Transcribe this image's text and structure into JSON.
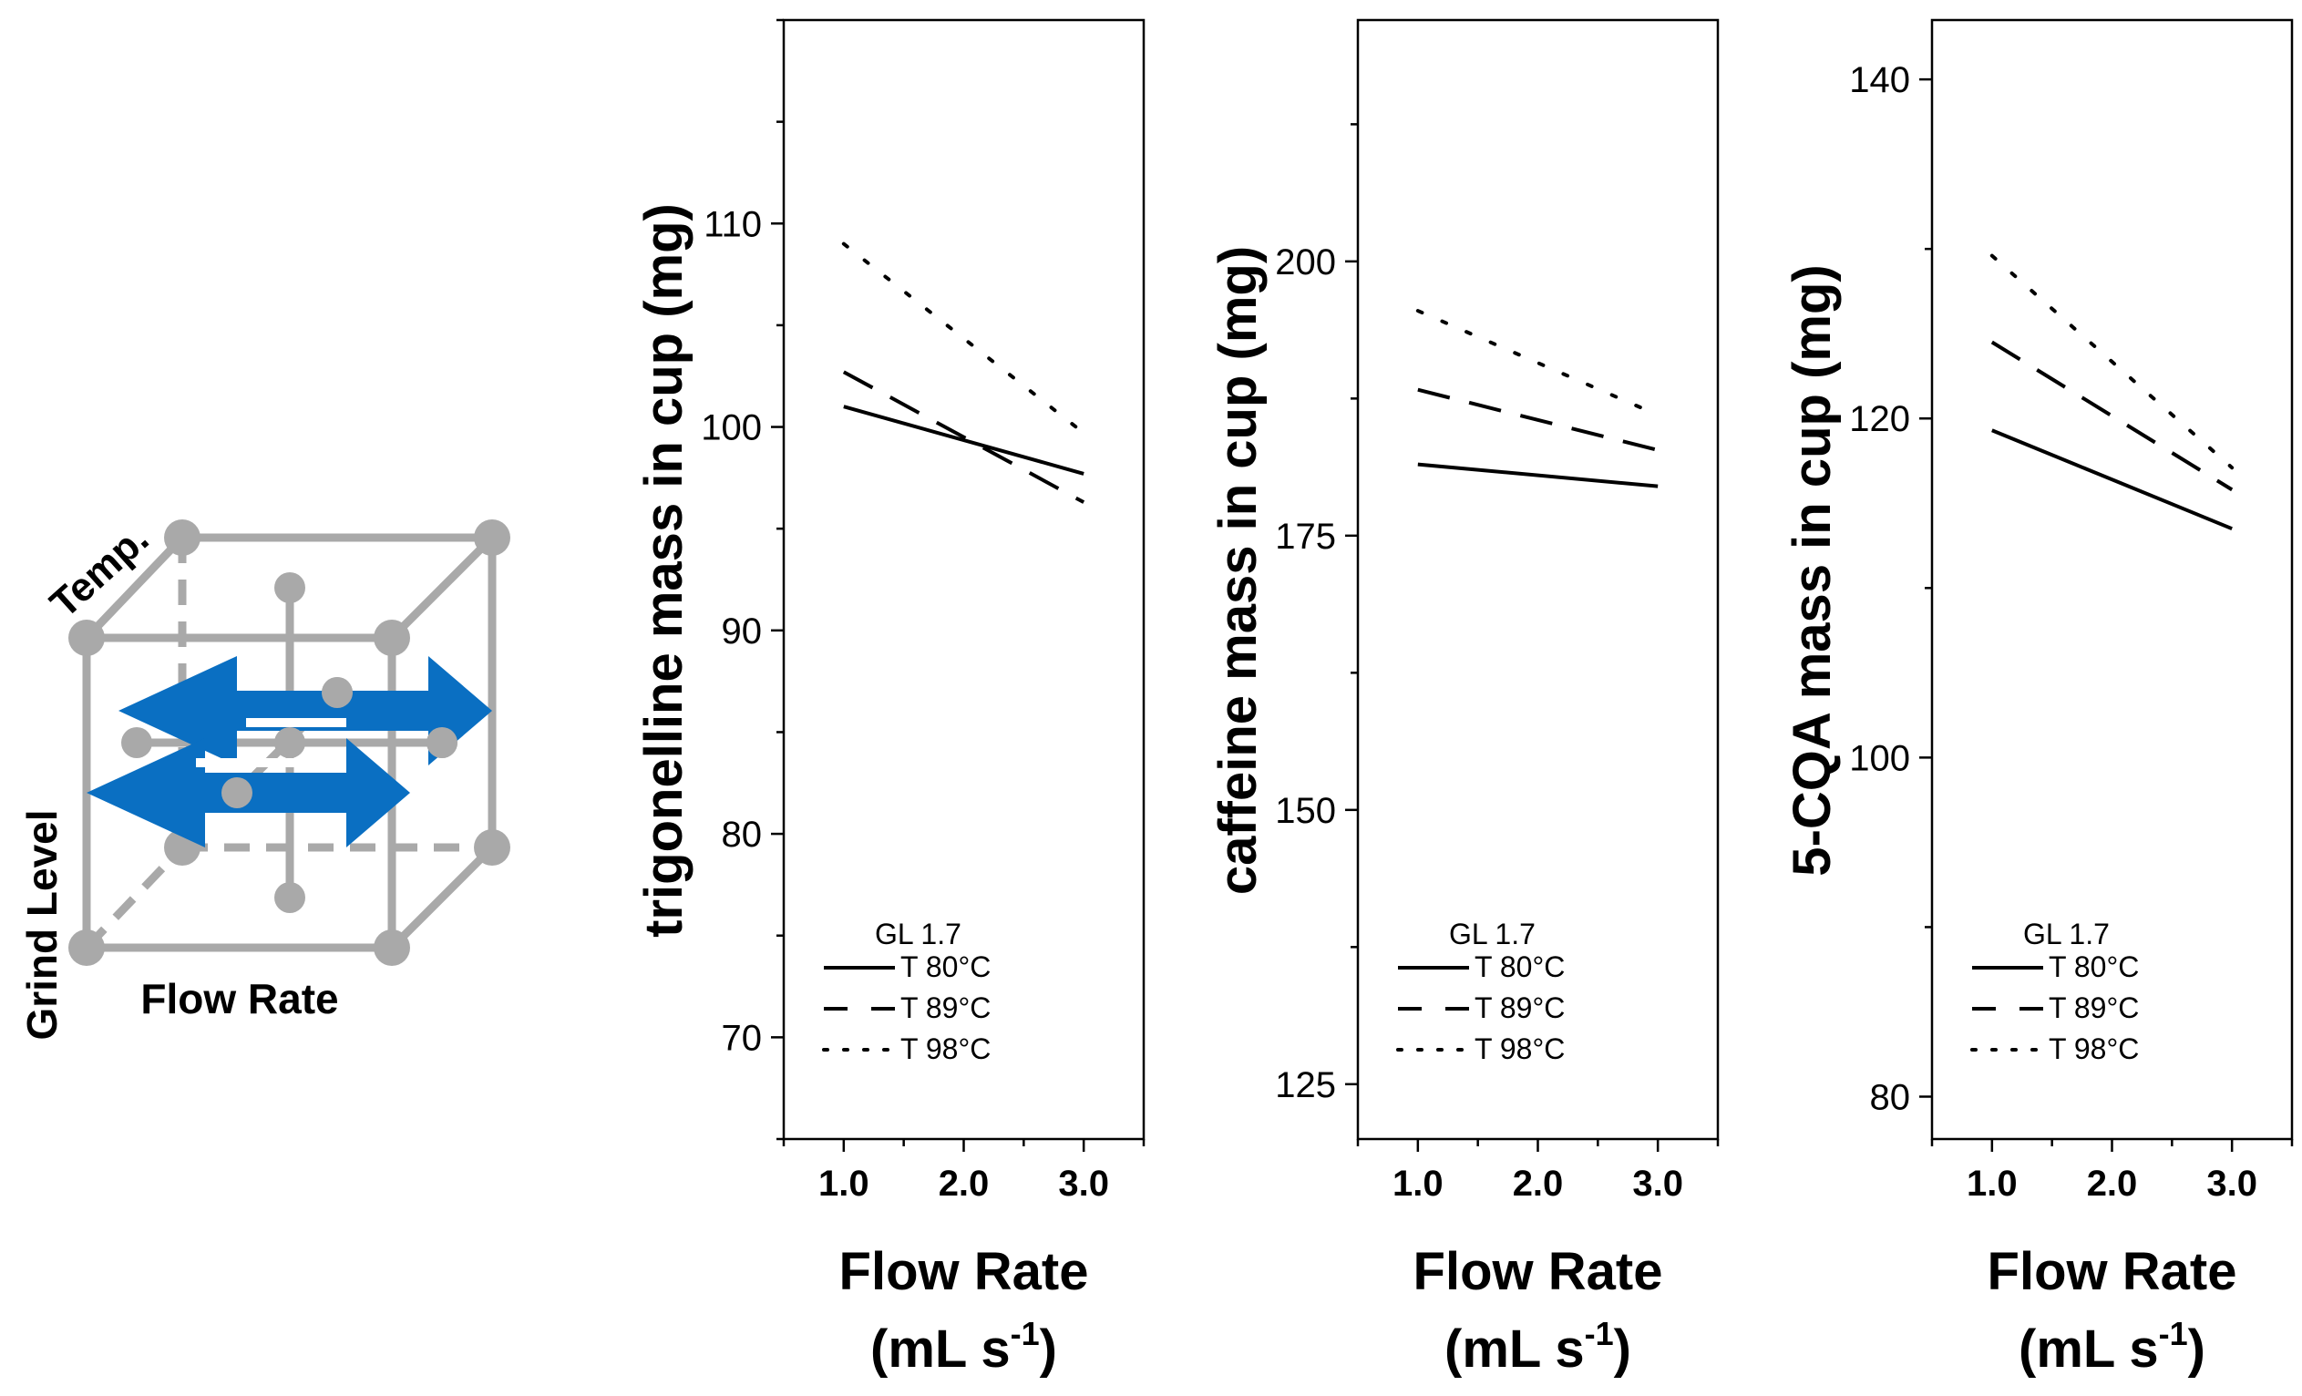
{
  "diagram": {
    "axis_labels": {
      "temp": "Temp.",
      "grind": "Grind Level",
      "flow": "Flow Rate"
    },
    "colors": {
      "cube": "#a9a9a9",
      "arrow": "#0a6fc2"
    }
  },
  "chart_data": [
    {
      "type": "line",
      "ylabel": "trigonelline mass in cup (mg)",
      "xlabel": "Flow Rate",
      "xunit_base": "(mL s",
      "xunit_exp": "-1",
      "xunit_close": ")",
      "xlim": [
        0.5,
        3.5
      ],
      "ylim": [
        65,
        120
      ],
      "yticks": [
        70,
        80,
        90,
        100,
        110
      ],
      "ytick_labels": [
        "70",
        "80",
        "90",
        "100",
        "110"
      ],
      "xticks": [
        1.0,
        2.0,
        3.0
      ],
      "xtick_labels": [
        "1.0",
        "2.0",
        "3.0"
      ],
      "legend_title": "GL 1.7",
      "series": [
        {
          "name": "T 80°C",
          "style": "solid",
          "x": [
            1.0,
            3.0
          ],
          "values": [
            101.0,
            97.7
          ]
        },
        {
          "name": "T 89°C",
          "style": "dashed",
          "x": [
            1.0,
            3.0
          ],
          "values": [
            102.7,
            96.3
          ]
        },
        {
          "name": "T 98°C",
          "style": "dotted",
          "x": [
            1.0,
            3.0
          ],
          "values": [
            109.0,
            99.7
          ]
        }
      ]
    },
    {
      "type": "line",
      "ylabel": "caffeine mass in cup (mg)",
      "xlabel": "Flow Rate",
      "xunit_base": "(mL s",
      "xunit_exp": "-1",
      "xunit_close": ")",
      "xlim": [
        0.5,
        3.5
      ],
      "ylim": [
        120,
        222
      ],
      "yticks": [
        125,
        150,
        175,
        200
      ],
      "ytick_labels": [
        "125",
        "150",
        "175",
        "200"
      ],
      "xticks": [
        1.0,
        2.0,
        3.0
      ],
      "xtick_labels": [
        "1.0",
        "2.0",
        "3.0"
      ],
      "legend_title": "GL 1.7",
      "series": [
        {
          "name": "T 80°C",
          "style": "solid",
          "x": [
            1.0,
            3.0
          ],
          "values": [
            181.5,
            179.5
          ]
        },
        {
          "name": "T 89°C",
          "style": "dashed",
          "x": [
            1.0,
            3.0
          ],
          "values": [
            188.3,
            182.8
          ]
        },
        {
          "name": "T 98°C",
          "style": "dotted",
          "x": [
            1.0,
            3.0
          ],
          "values": [
            195.5,
            186.0
          ]
        }
      ]
    },
    {
      "type": "line",
      "ylabel": "5-CQA mass in cup (mg)",
      "xlabel": "Flow Rate",
      "xunit_base": "(mL s",
      "xunit_exp": "-1",
      "xunit_close": ")",
      "xlim": [
        0.5,
        3.5
      ],
      "ylim": [
        77.5,
        143.5
      ],
      "yticks": [
        80,
        100,
        120,
        140
      ],
      "ytick_labels": [
        "80",
        "100",
        "120",
        "140"
      ],
      "xticks": [
        1.0,
        2.0,
        3.0
      ],
      "xtick_labels": [
        "1.0",
        "2.0",
        "3.0"
      ],
      "legend_title": "GL 1.7",
      "series": [
        {
          "name": "T 80°C",
          "style": "solid",
          "x": [
            1.0,
            3.0
          ],
          "values": [
            119.3,
            113.5
          ]
        },
        {
          "name": "T 89°C",
          "style": "dashed",
          "x": [
            1.0,
            3.0
          ],
          "values": [
            124.5,
            115.8
          ]
        },
        {
          "name": "T 98°C",
          "style": "dotted",
          "x": [
            1.0,
            3.0
          ],
          "values": [
            129.6,
            117.1
          ]
        }
      ]
    }
  ]
}
